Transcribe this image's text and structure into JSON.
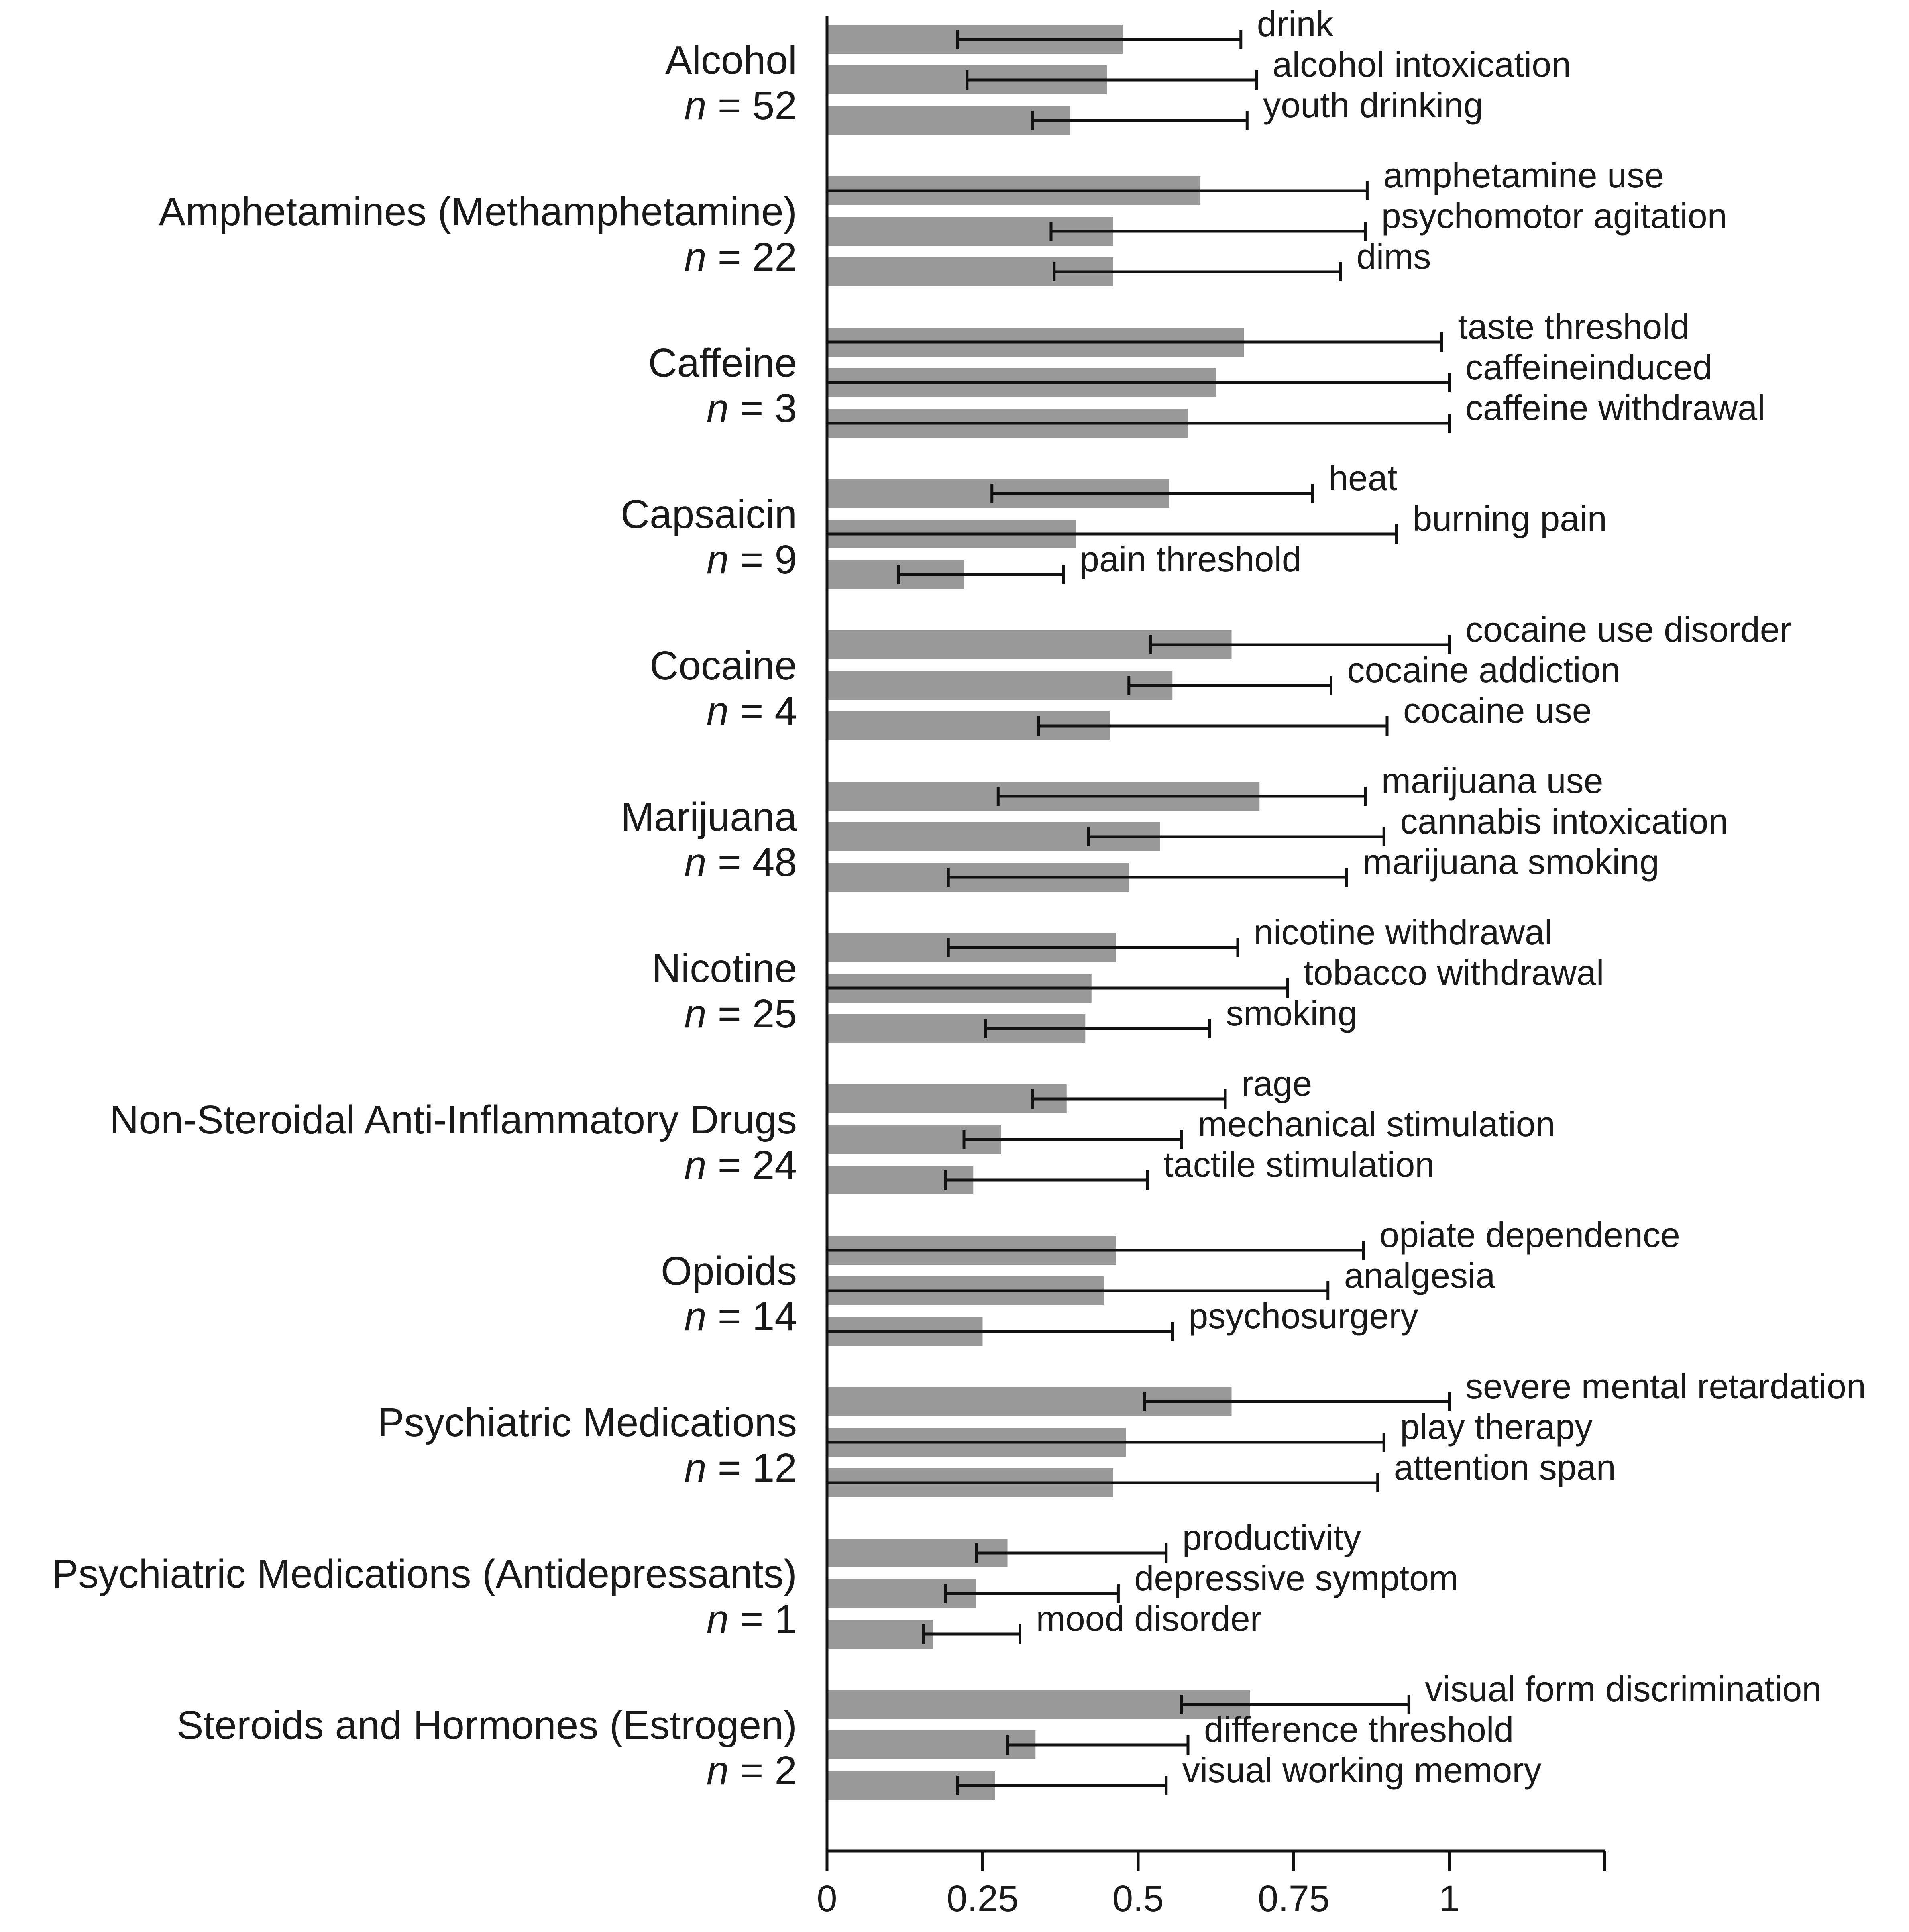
{
  "chart_data": {
    "type": "bar",
    "orientation": "horizontal",
    "xlim": [
      0,
      1.25
    ],
    "x_ticks": [
      0,
      0.25,
      0.5,
      0.75,
      1,
      1.25
    ],
    "x_tick_labels": [
      "0",
      "0.25",
      "0.5",
      "0.75",
      "1",
      ""
    ],
    "grid": false,
    "groups": [
      {
        "name": "Alcohol",
        "n": "52",
        "bars": [
          {
            "label": "drink",
            "value": 0.475,
            "err_low": 0.21,
            "err_high": 0.665
          },
          {
            "label": "alcohol intoxication",
            "value": 0.45,
            "err_low": 0.225,
            "err_high": 0.69
          },
          {
            "label": "youth drinking",
            "value": 0.39,
            "err_low": 0.33,
            "err_high": 0.675
          }
        ]
      },
      {
        "name": "Amphetamines (Methamphetamine)",
        "n": "22",
        "bars": [
          {
            "label": "amphetamine use",
            "value": 0.6,
            "err_low": 0.0,
            "err_high": 0.868
          },
          {
            "label": "psychomotor agitation",
            "value": 0.46,
            "err_low": 0.36,
            "err_high": 0.865
          },
          {
            "label": "dims",
            "value": 0.46,
            "err_low": 0.365,
            "err_high": 0.825
          }
        ]
      },
      {
        "name": "Caffeine",
        "n": "3",
        "bars": [
          {
            "label": "taste threshold",
            "value": 0.67,
            "err_low": 0.0,
            "err_high": 0.988
          },
          {
            "label": "caffeineinduced",
            "value": 0.625,
            "err_low": 0.0,
            "err_high": 1.0
          },
          {
            "label": "caffeine withdrawal",
            "value": 0.58,
            "err_low": 0.0,
            "err_high": 1.0
          }
        ]
      },
      {
        "name": "Capsaicin",
        "n": "9",
        "bars": [
          {
            "label": "heat",
            "value": 0.55,
            "err_low": 0.265,
            "err_high": 0.78
          },
          {
            "label": "burning pain",
            "value": 0.4,
            "err_low": 0.0,
            "err_high": 0.915
          },
          {
            "label": "pain threshold",
            "value": 0.22,
            "err_low": 0.115,
            "err_high": 0.38
          }
        ]
      },
      {
        "name": "Cocaine",
        "n": "4",
        "bars": [
          {
            "label": "cocaine use disorder",
            "value": 0.65,
            "err_low": 0.52,
            "err_high": 1.0
          },
          {
            "label": "cocaine addiction",
            "value": 0.555,
            "err_low": 0.485,
            "err_high": 0.81
          },
          {
            "label": "cocaine use",
            "value": 0.455,
            "err_low": 0.34,
            "err_high": 0.9
          }
        ]
      },
      {
        "name": "Marijuana",
        "n": "48",
        "bars": [
          {
            "label": "marijuana use",
            "value": 0.695,
            "err_low": 0.275,
            "err_high": 0.865
          },
          {
            "label": "cannabis intoxication",
            "value": 0.535,
            "err_low": 0.42,
            "err_high": 0.895
          },
          {
            "label": "marijuana smoking",
            "value": 0.485,
            "err_low": 0.195,
            "err_high": 0.835
          }
        ]
      },
      {
        "name": "Nicotine",
        "n": "25",
        "bars": [
          {
            "label": "nicotine withdrawal",
            "value": 0.465,
            "err_low": 0.195,
            "err_high": 0.66
          },
          {
            "label": "tobacco withdrawal",
            "value": 0.425,
            "err_low": 0.0,
            "err_high": 0.74
          },
          {
            "label": "smoking",
            "value": 0.415,
            "err_low": 0.255,
            "err_high": 0.615
          }
        ]
      },
      {
        "name": "Non-Steroidal Anti-Inflammatory Drugs",
        "n": "24",
        "bars": [
          {
            "label": "rage",
            "value": 0.385,
            "err_low": 0.33,
            "err_high": 0.64
          },
          {
            "label": "mechanical stimulation",
            "value": 0.28,
            "err_low": 0.22,
            "err_high": 0.57
          },
          {
            "label": "tactile stimulation",
            "value": 0.235,
            "err_low": 0.19,
            "err_high": 0.515
          }
        ]
      },
      {
        "name": "Opioids",
        "n": "14",
        "bars": [
          {
            "label": "opiate dependence",
            "value": 0.465,
            "err_low": 0.0,
            "err_high": 0.862
          },
          {
            "label": "analgesia",
            "value": 0.445,
            "err_low": 0.0,
            "err_high": 0.805
          },
          {
            "label": "psychosurgery",
            "value": 0.25,
            "err_low": 0.0,
            "err_high": 0.555
          }
        ]
      },
      {
        "name": "Psychiatric Medications",
        "n": "12",
        "bars": [
          {
            "label": "severe mental retardation",
            "value": 0.65,
            "err_low": 0.51,
            "err_high": 1.0
          },
          {
            "label": "play therapy",
            "value": 0.48,
            "err_low": 0.0,
            "err_high": 0.895
          },
          {
            "label": "attention span",
            "value": 0.46,
            "err_low": 0.0,
            "err_high": 0.885
          }
        ]
      },
      {
        "name": "Psychiatric Medications (Antidepressants)",
        "n": "1",
        "bars": [
          {
            "label": "productivity",
            "value": 0.29,
            "err_low": 0.24,
            "err_high": 0.545
          },
          {
            "label": "depressive symptom",
            "value": 0.24,
            "err_low": 0.19,
            "err_high": 0.468
          },
          {
            "label": "mood disorder",
            "value": 0.17,
            "err_low": 0.155,
            "err_high": 0.31
          }
        ]
      },
      {
        "name": "Steroids and Hormones (Estrogen)",
        "n": "2",
        "bars": [
          {
            "label": "visual form discrimination",
            "value": 0.68,
            "err_low": 0.57,
            "err_high": 0.935
          },
          {
            "label": "difference threshold",
            "value": 0.335,
            "err_low": 0.29,
            "err_high": 0.58
          },
          {
            "label": "visual working memory",
            "value": 0.27,
            "err_low": 0.21,
            "err_high": 0.545
          }
        ]
      }
    ]
  }
}
